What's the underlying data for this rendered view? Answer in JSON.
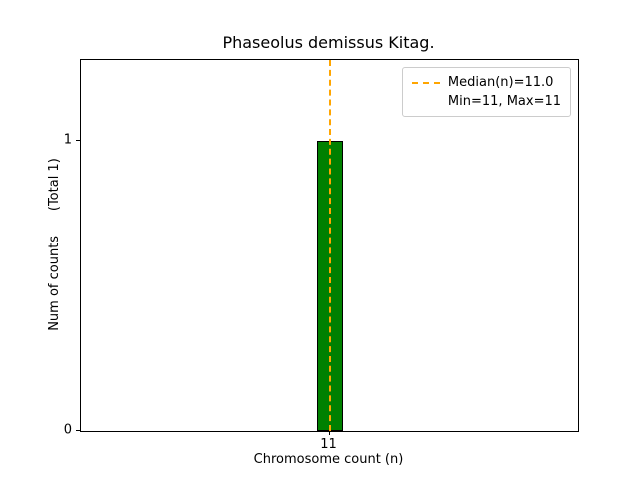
{
  "chart_data": {
    "type": "bar",
    "title": "Phaseolus demissus Kitag.",
    "xlabel": "Chromosome count (n)",
    "ylabel": "Num of counts      (Total 1)",
    "categories": [
      "11"
    ],
    "values": [
      1
    ],
    "ylim": [
      0,
      1.28
    ],
    "yticks": [
      0,
      1
    ],
    "median": 11.0,
    "min": 11,
    "max": 11,
    "total_counts": 1,
    "grid": false,
    "legend": {
      "position": "upper right",
      "entries": [
        "Median(n)=11.0",
        "Min=11, Max=11"
      ]
    },
    "colors": {
      "bar_fill": "#008000",
      "bar_edge": "#000000",
      "median_line": "#FFA500",
      "axes_edge": "#000000",
      "legend_border": "#cccccc"
    }
  }
}
